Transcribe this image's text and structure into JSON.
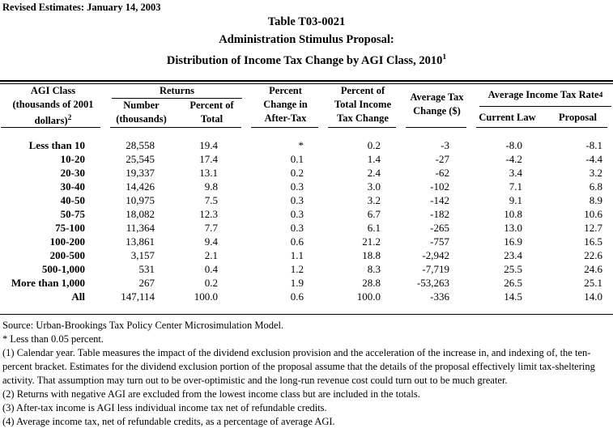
{
  "revised_note": "Revised Estimates: January 14, 2003",
  "title": {
    "line1": "Table T03-0021",
    "line2": "Administration Stimulus Proposal:",
    "line3": "Distribution of Income Tax Change by AGI Class, 2010",
    "line3_superscript": "1"
  },
  "table": {
    "headers": {
      "agi_line1": "AGI Class",
      "agi_line2": "(thousands of 2001",
      "agi_line3": "dollars)",
      "agi_superscript": "2",
      "returns_group": "Returns",
      "number_line1": "Number",
      "number_line2": "(thousands)",
      "pct_of_total_line1": "Percent of",
      "pct_of_total_line2": "Total",
      "pct_change_line1": "Percent",
      "pct_change_line2": "Change in",
      "pct_change_line3": "After-Tax",
      "pct_tax_change_line1": "Percent of",
      "pct_tax_change_line2": "Total Income",
      "pct_tax_change_line3": "Tax Change",
      "avg_tax_change_line1": "Average Tax",
      "avg_tax_change_line2": "Change ($)",
      "rate_group": "Average Income Tax Rate",
      "rate_superscript": "4",
      "current_law": "Current Law",
      "proposal": "Proposal"
    },
    "rows": [
      [
        "Less than 10",
        "28,558",
        "19.4",
        "*",
        "0.2",
        "-3",
        "-8.0",
        "-8.1"
      ],
      [
        "10-20",
        "25,545",
        "17.4",
        "0.1",
        "1.4",
        "-27",
        "-4.2",
        "-4.4"
      ],
      [
        "20-30",
        "19,337",
        "13.1",
        "0.2",
        "2.4",
        "-62",
        "3.4",
        "3.2"
      ],
      [
        "30-40",
        "14,426",
        "9.8",
        "0.3",
        "3.0",
        "-102",
        "7.1",
        "6.8"
      ],
      [
        "40-50",
        "10,975",
        "7.5",
        "0.3",
        "3.2",
        "-142",
        "9.1",
        "8.9"
      ],
      [
        "50-75",
        "18,082",
        "12.3",
        "0.3",
        "6.7",
        "-182",
        "10.8",
        "10.6"
      ],
      [
        "75-100",
        "11,364",
        "7.7",
        "0.3",
        "6.1",
        "-265",
        "13.0",
        "12.7"
      ],
      [
        "100-200",
        "13,861",
        "9.4",
        "0.6",
        "21.2",
        "-757",
        "16.9",
        "16.5"
      ],
      [
        "200-500",
        "3,157",
        "2.1",
        "1.1",
        "18.8",
        "-2,942",
        "23.4",
        "22.6"
      ],
      [
        "500-1,000",
        "531",
        "0.4",
        "1.2",
        "8.3",
        "-7,719",
        "25.5",
        "24.6"
      ],
      [
        "More than 1,000",
        "267",
        "0.2",
        "1.9",
        "28.8",
        "-53,263",
        "26.5",
        "25.1"
      ],
      [
        "All",
        "147,114",
        "100.0",
        "0.6",
        "100.0",
        "-336",
        "14.5",
        "14.0"
      ]
    ]
  },
  "footnotes": [
    "Source: Urban-Brookings Tax Policy Center Microsimulation Model.",
    "* Less than 0.05 percent.",
    "(1) Calendar year. Table measures the impact of the dividend exclusion provision and the acceleration of the increase in, and indexing of, the ten-percent bracket. Estimates for the dividend exclusion portion of the proposal assume that the details of the proposal effectively limit tax-sheltering activity.  That assumption may turn out to be over-optimistic and the long-run revenue cost could turn out to be much greater.",
    "(2) Returns with negative AGI are excluded from the lowest income class but are included in the totals.",
    "(3) After-tax income is AGI less individual income tax net of refundable credits.",
    "(4) Average income tax, net of refundable credits, as a percentage of average AGI."
  ]
}
